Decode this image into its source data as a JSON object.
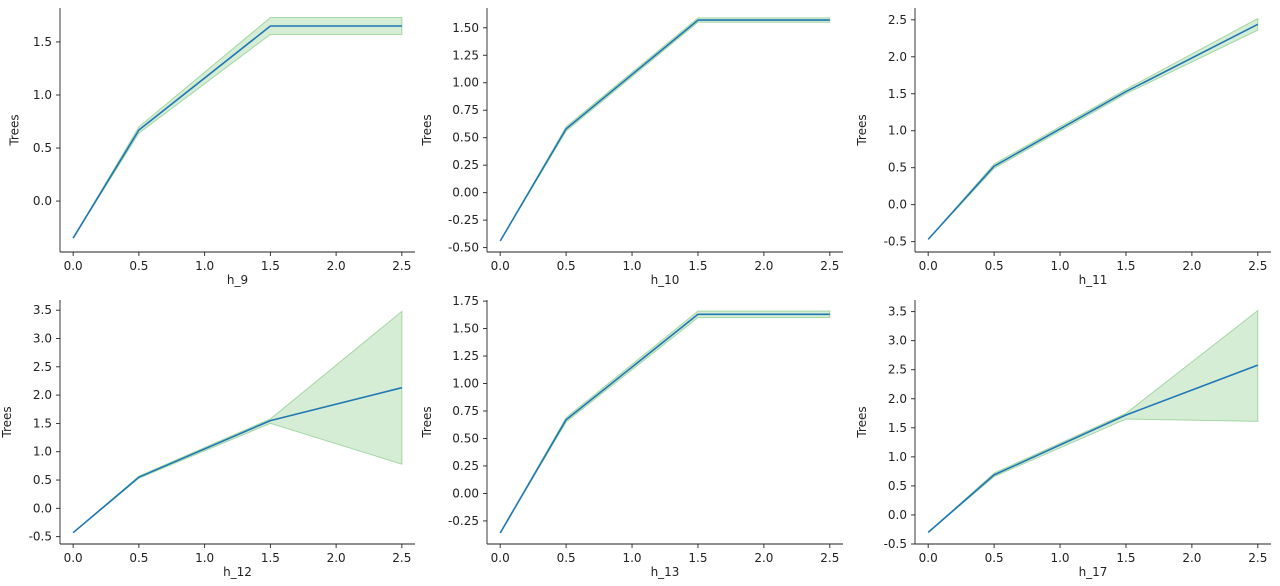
{
  "colors": {
    "line": "#1f77b4",
    "band": "#2ca02c",
    "axis": "#222222"
  },
  "chart_data": [
    {
      "type": "line",
      "xlabel": "h_9",
      "ylabel": "Trees",
      "x": [
        0.0,
        0.5,
        1.5,
        2.5
      ],
      "y": [
        -0.35,
        0.67,
        1.65,
        1.65
      ],
      "band_lower": [
        -0.35,
        0.64,
        1.57,
        1.57
      ],
      "band_upper": [
        -0.35,
        0.7,
        1.73,
        1.73
      ],
      "xticks": [
        0.0,
        0.5,
        1.0,
        1.5,
        2.0,
        2.5
      ],
      "xtick_labels": [
        "0.0",
        "0.5",
        "1.0",
        "1.5",
        "2.0",
        "2.5"
      ],
      "yticks": [
        0.0,
        0.5,
        1.0,
        1.5
      ],
      "ytick_labels": [
        "0.0",
        "0.5",
        "1.0",
        "1.5"
      ],
      "xlim": [
        -0.1,
        2.6
      ],
      "ylim": [
        -0.48,
        1.82
      ],
      "grid": false
    },
    {
      "type": "line",
      "xlabel": "h_10",
      "ylabel": "Trees",
      "x": [
        0.0,
        0.5,
        1.5,
        2.5
      ],
      "y": [
        -0.44,
        0.58,
        1.57,
        1.57
      ],
      "band_lower": [
        -0.44,
        0.56,
        1.55,
        1.55
      ],
      "band_upper": [
        -0.44,
        0.6,
        1.59,
        1.59
      ],
      "xticks": [
        0.0,
        0.5,
        1.0,
        1.5,
        2.0,
        2.5
      ],
      "xtick_labels": [
        "0.0",
        "0.5",
        "1.0",
        "1.5",
        "2.0",
        "2.5"
      ],
      "yticks": [
        -0.5,
        -0.25,
        0.0,
        0.25,
        0.5,
        0.75,
        1.0,
        1.25,
        1.5
      ],
      "ytick_labels": [
        "-0.50",
        "-0.25",
        "0.00",
        "0.25",
        "0.50",
        "0.75",
        "1.00",
        "1.25",
        "1.50"
      ],
      "xlim": [
        -0.1,
        2.6
      ],
      "ylim": [
        -0.54,
        1.68
      ],
      "grid": false
    },
    {
      "type": "line",
      "xlabel": "h_11",
      "ylabel": "Trees",
      "x": [
        0.0,
        0.5,
        1.5,
        2.5
      ],
      "y": [
        -0.47,
        0.52,
        1.53,
        2.44
      ],
      "band_lower": [
        -0.47,
        0.49,
        1.5,
        2.36
      ],
      "band_upper": [
        -0.47,
        0.55,
        1.56,
        2.52
      ],
      "xticks": [
        0.0,
        0.5,
        1.0,
        1.5,
        2.0,
        2.5
      ],
      "xtick_labels": [
        "0.0",
        "0.5",
        "1.0",
        "1.5",
        "2.0",
        "2.5"
      ],
      "yticks": [
        -0.5,
        0.0,
        0.5,
        1.0,
        1.5,
        2.0,
        2.5
      ],
      "ytick_labels": [
        "-0.5",
        "0.0",
        "0.5",
        "1.0",
        "1.5",
        "2.0",
        "2.5"
      ],
      "xlim": [
        -0.1,
        2.6
      ],
      "ylim": [
        -0.64,
        2.66
      ],
      "grid": false
    },
    {
      "type": "line",
      "xlabel": "h_12",
      "ylabel": "Trees",
      "x": [
        0.0,
        0.5,
        1.5,
        2.5
      ],
      "y": [
        -0.43,
        0.55,
        1.55,
        2.13
      ],
      "band_lower": [
        -0.43,
        0.53,
        1.5,
        0.78
      ],
      "band_upper": [
        -0.43,
        0.57,
        1.58,
        3.48
      ],
      "xticks": [
        0.0,
        0.5,
        1.0,
        1.5,
        2.0,
        2.5
      ],
      "xtick_labels": [
        "0.0",
        "0.5",
        "1.0",
        "1.5",
        "2.0",
        "2.5"
      ],
      "yticks": [
        -0.5,
        0.0,
        0.5,
        1.0,
        1.5,
        2.0,
        2.5,
        3.0,
        3.5
      ],
      "ytick_labels": [
        "-0.5",
        "0.0",
        "0.5",
        "1.0",
        "1.5",
        "2.0",
        "2.5",
        "3.0",
        "3.5"
      ],
      "xlim": [
        -0.1,
        2.6
      ],
      "ylim": [
        -0.63,
        3.68
      ],
      "grid": false
    },
    {
      "type": "line",
      "xlabel": "h_13",
      "ylabel": "Trees",
      "x": [
        0.0,
        0.5,
        1.5,
        2.5
      ],
      "y": [
        -0.36,
        0.67,
        1.63,
        1.63
      ],
      "band_lower": [
        -0.36,
        0.65,
        1.6,
        1.6
      ],
      "band_upper": [
        -0.36,
        0.69,
        1.66,
        1.66
      ],
      "xticks": [
        0.0,
        0.5,
        1.0,
        1.5,
        2.0,
        2.5
      ],
      "xtick_labels": [
        "0.0",
        "0.5",
        "1.0",
        "1.5",
        "2.0",
        "2.5"
      ],
      "yticks": [
        -0.25,
        0.0,
        0.25,
        0.5,
        0.75,
        1.0,
        1.25,
        1.5,
        1.75
      ],
      "ytick_labels": [
        "-0.25",
        "0.00",
        "0.25",
        "0.50",
        "0.75",
        "1.00",
        "1.25",
        "1.50",
        "1.75"
      ],
      "xlim": [
        -0.1,
        2.6
      ],
      "ylim": [
        -0.46,
        1.76
      ],
      "grid": false
    },
    {
      "type": "line",
      "xlabel": "h_17",
      "ylabel": "Trees",
      "x": [
        0.0,
        0.5,
        1.5,
        2.5
      ],
      "y": [
        -0.3,
        0.69,
        1.72,
        2.58
      ],
      "band_lower": [
        -0.3,
        0.66,
        1.65,
        1.61
      ],
      "band_upper": [
        -0.3,
        0.72,
        1.75,
        3.52
      ],
      "xticks": [
        0.0,
        0.5,
        1.0,
        1.5,
        2.0,
        2.5
      ],
      "xtick_labels": [
        "0.0",
        "0.5",
        "1.0",
        "1.5",
        "2.0",
        "2.5"
      ],
      "yticks": [
        -0.5,
        0.0,
        0.5,
        1.0,
        1.5,
        2.0,
        2.5,
        3.0,
        3.5
      ],
      "ytick_labels": [
        "-0.5",
        "0.0",
        "0.5",
        "1.0",
        "1.5",
        "2.0",
        "2.5",
        "3.0",
        "3.5"
      ],
      "xlim": [
        -0.1,
        2.6
      ],
      "ylim": [
        -0.5,
        3.7
      ],
      "grid": false
    }
  ]
}
